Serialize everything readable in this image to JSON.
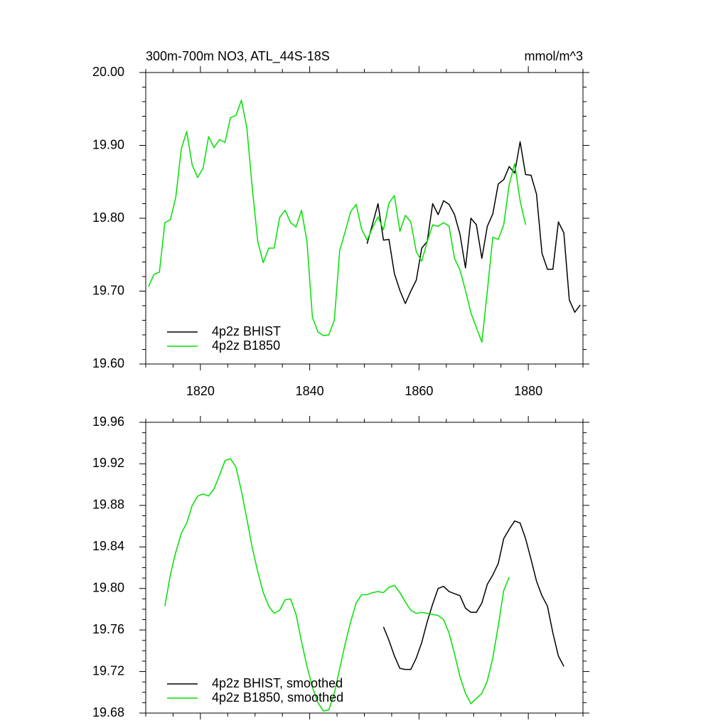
{
  "chart_data": [
    {
      "type": "line",
      "title": "300m-700m NO3, ATL_44S-18S",
      "units": "mmol/m^3",
      "xlim": [
        1810,
        1890
      ],
      "xticks": [
        1820,
        1840,
        1860,
        1880
      ],
      "ylim": [
        19.6,
        20.0
      ],
      "yticks": [
        {
          "value": 19.6,
          "label": "19.60"
        },
        {
          "value": 19.7,
          "label": "19.70"
        },
        {
          "value": 19.8,
          "label": "19.80"
        },
        {
          "value": 19.9,
          "label": "19.90"
        },
        {
          "value": 20.0,
          "label": "20.00"
        }
      ],
      "series": [
        {
          "name": "4p2z BHIST",
          "color": "#000000",
          "x": [
            1850.5,
            1851.5,
            1852.5,
            1853.5,
            1854.5,
            1855.5,
            1856.5,
            1857.5,
            1858.5,
            1859.5,
            1860.5,
            1861.5,
            1862.5,
            1863.5,
            1864.5,
            1865.5,
            1866.5,
            1867.5,
            1868.5,
            1869.5,
            1870.5,
            1871.5,
            1872.5,
            1873.5,
            1874.5,
            1875.5,
            1876.5,
            1877.5,
            1878.5,
            1879.5,
            1880.5,
            1881.5,
            1882.5,
            1883.5,
            1884.5,
            1885.5,
            1886.5,
            1887.5,
            1888.5,
            1889.5
          ],
          "values": [
            19.765,
            19.792,
            19.82,
            19.77,
            19.771,
            19.724,
            19.701,
            19.683,
            19.7,
            19.715,
            19.759,
            19.768,
            19.82,
            19.805,
            19.824,
            19.819,
            19.805,
            19.778,
            19.732,
            19.8,
            19.791,
            19.745,
            19.789,
            19.806,
            19.847,
            19.853,
            19.871,
            19.862,
            19.905,
            19.86,
            19.859,
            19.833,
            19.752,
            19.73,
            19.73,
            19.795,
            19.78,
            19.688,
            19.671,
            19.681
          ]
        },
        {
          "name": "4p2z B1850",
          "color": "#00e000",
          "x": [
            1810.5,
            1811.5,
            1812.5,
            1813.5,
            1814.5,
            1815.5,
            1816.5,
            1817.5,
            1818.5,
            1819.5,
            1820.5,
            1821.5,
            1822.5,
            1823.5,
            1824.5,
            1825.5,
            1826.5,
            1827.5,
            1828.5,
            1829.5,
            1830.5,
            1831.5,
            1832.5,
            1833.5,
            1834.5,
            1835.5,
            1836.5,
            1837.5,
            1838.5,
            1839.5,
            1840.5,
            1841.5,
            1842.5,
            1843.5,
            1844.5,
            1845.5,
            1846.5,
            1847.5,
            1848.5,
            1849.5,
            1850.5,
            1851.5,
            1852.5,
            1853.5,
            1854.5,
            1855.5,
            1856.5,
            1857.5,
            1858.5,
            1859.5,
            1860.5,
            1861.5,
            1862.5,
            1863.5,
            1864.5,
            1865.5,
            1866.5,
            1867.5,
            1868.5,
            1869.5,
            1870.5,
            1871.5,
            1872.5,
            1873.5,
            1874.5,
            1875.5,
            1876.5,
            1877.5,
            1878.5,
            1879.5
          ],
          "values": [
            19.706,
            19.723,
            19.726,
            19.794,
            19.798,
            19.829,
            19.895,
            19.919,
            19.873,
            19.856,
            19.869,
            19.912,
            19.897,
            19.908,
            19.904,
            19.938,
            19.941,
            19.962,
            19.924,
            19.841,
            19.768,
            19.739,
            19.759,
            19.759,
            19.801,
            19.811,
            19.794,
            19.788,
            19.811,
            19.768,
            19.664,
            19.644,
            19.639,
            19.64,
            19.66,
            19.756,
            19.782,
            19.809,
            19.819,
            19.785,
            19.77,
            19.787,
            19.802,
            19.784,
            19.821,
            19.831,
            19.782,
            19.804,
            19.795,
            19.754,
            19.741,
            19.768,
            19.791,
            19.789,
            19.794,
            19.789,
            19.745,
            19.729,
            19.701,
            19.67,
            19.65,
            19.63,
            19.7,
            19.774,
            19.771,
            19.791,
            19.846,
            19.875,
            19.824,
            19.791
          ]
        }
      ]
    },
    {
      "type": "line",
      "xlim": [
        1810,
        1890
      ],
      "xticks": [
        1820,
        1840,
        1860,
        1880
      ],
      "ylim": [
        19.68,
        19.96
      ],
      "yticks": [
        {
          "value": 19.68,
          "label": "19.68"
        },
        {
          "value": 19.72,
          "label": "19.72"
        },
        {
          "value": 19.76,
          "label": "19.76"
        },
        {
          "value": 19.8,
          "label": "19.80"
        },
        {
          "value": 19.84,
          "label": "19.84"
        },
        {
          "value": 19.88,
          "label": "19.88"
        },
        {
          "value": 19.92,
          "label": "19.92"
        },
        {
          "value": 19.96,
          "label": "19.96"
        }
      ],
      "series": [
        {
          "name": "4p2z BHIST, smoothed",
          "color": "#000000",
          "x": [
            1853.5,
            1854.5,
            1855.5,
            1856.5,
            1857.5,
            1858.5,
            1859.5,
            1860.5,
            1861.5,
            1862.5,
            1863.5,
            1864.5,
            1865.5,
            1866.5,
            1867.5,
            1868.5,
            1869.5,
            1870.5,
            1871.5,
            1872.5,
            1873.5,
            1874.5,
            1875.5,
            1876.5,
            1877.5,
            1878.5,
            1879.5,
            1880.5,
            1881.5,
            1882.5,
            1883.5,
            1884.5,
            1885.5,
            1886.5
          ],
          "values": [
            19.763,
            19.75,
            19.735,
            19.723,
            19.722,
            19.722,
            19.733,
            19.748,
            19.768,
            19.785,
            19.8,
            19.802,
            19.797,
            19.795,
            19.793,
            19.781,
            19.777,
            19.777,
            19.786,
            19.804,
            19.813,
            19.824,
            19.848,
            19.857,
            19.865,
            19.863,
            19.848,
            19.828,
            19.807,
            19.793,
            19.783,
            19.757,
            19.735,
            19.725
          ]
        },
        {
          "name": "4p2z B1850, smoothed",
          "color": "#00e000",
          "x": [
            1813.5,
            1814.5,
            1815.5,
            1816.5,
            1817.5,
            1818.5,
            1819.5,
            1820.5,
            1821.5,
            1822.5,
            1823.5,
            1824.5,
            1825.5,
            1826.5,
            1827.5,
            1828.5,
            1829.5,
            1830.5,
            1831.5,
            1832.5,
            1833.5,
            1834.5,
            1835.5,
            1836.5,
            1837.5,
            1838.5,
            1839.5,
            1840.5,
            1841.5,
            1842.5,
            1843.5,
            1844.5,
            1845.5,
            1846.5,
            1847.5,
            1848.5,
            1849.5,
            1850.5,
            1851.5,
            1852.5,
            1853.5,
            1854.5,
            1855.5,
            1856.5,
            1857.5,
            1858.5,
            1859.5,
            1860.5,
            1861.5,
            1862.5,
            1863.5,
            1864.5,
            1865.5,
            1866.5,
            1867.5,
            1868.5,
            1869.5,
            1870.5,
            1871.5,
            1872.5,
            1873.5,
            1874.5,
            1875.5,
            1876.5
          ],
          "values": [
            19.783,
            19.813,
            19.835,
            19.853,
            19.863,
            19.88,
            19.889,
            19.891,
            19.889,
            19.896,
            19.909,
            19.923,
            19.925,
            19.917,
            19.894,
            19.867,
            19.839,
            19.816,
            19.796,
            19.783,
            19.776,
            19.779,
            19.789,
            19.79,
            19.775,
            19.749,
            19.725,
            19.705,
            19.69,
            19.682,
            19.683,
            19.699,
            19.723,
            19.747,
            19.768,
            19.786,
            19.794,
            19.794,
            19.796,
            19.797,
            19.796,
            19.801,
            19.803,
            19.796,
            19.787,
            19.779,
            19.776,
            19.777,
            19.776,
            19.775,
            19.774,
            19.77,
            19.757,
            19.737,
            19.715,
            19.699,
            19.689,
            19.694,
            19.699,
            19.711,
            19.733,
            19.764,
            19.798,
            19.811
          ]
        }
      ]
    }
  ]
}
